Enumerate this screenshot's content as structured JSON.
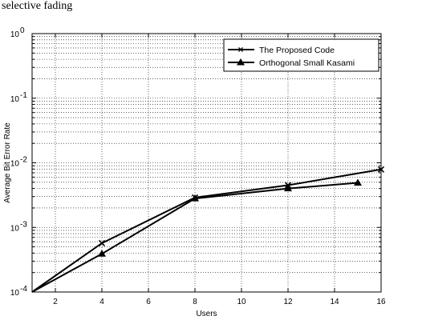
{
  "caption": "selective fading",
  "chart_data": {
    "type": "line",
    "title": "",
    "xlabel": "Users",
    "ylabel": "Average Bit Error Rate",
    "xlim": [
      1,
      16
    ],
    "ylim": [
      0.0001,
      1
    ],
    "yscale": "log",
    "grid": true,
    "legend_position": "top-right",
    "x_ticks": [
      2,
      4,
      6,
      8,
      10,
      12,
      14,
      16
    ],
    "y_ticks": [
      {
        "value": 0.0001,
        "base": "10",
        "exp": "-4"
      },
      {
        "value": 0.001,
        "base": "10",
        "exp": "-3"
      },
      {
        "value": 0.01,
        "base": "10",
        "exp": "-2"
      },
      {
        "value": 0.1,
        "base": "10",
        "exp": "-1"
      },
      {
        "value": 1,
        "base": "10",
        "exp": "0"
      }
    ],
    "series": [
      {
        "name": "The Proposed Code",
        "marker": "x",
        "x": [
          1,
          4,
          8,
          12,
          16
        ],
        "y": [
          0.0001,
          0.00057,
          0.0029,
          0.0045,
          0.0079
        ],
        "marker_x": [
          4,
          8,
          12,
          16
        ],
        "marker_y": [
          0.00057,
          0.0029,
          0.0045,
          0.0079
        ]
      },
      {
        "name": "Orthogonal Small Kasami",
        "marker": "triangle",
        "x": [
          1,
          4,
          8,
          12,
          15
        ],
        "y": [
          0.0001,
          0.00039,
          0.0028,
          0.004,
          0.0049
        ],
        "marker_x": [
          4,
          8,
          12,
          15
        ],
        "marker_y": [
          0.00039,
          0.0028,
          0.004,
          0.0049
        ]
      }
    ]
  }
}
